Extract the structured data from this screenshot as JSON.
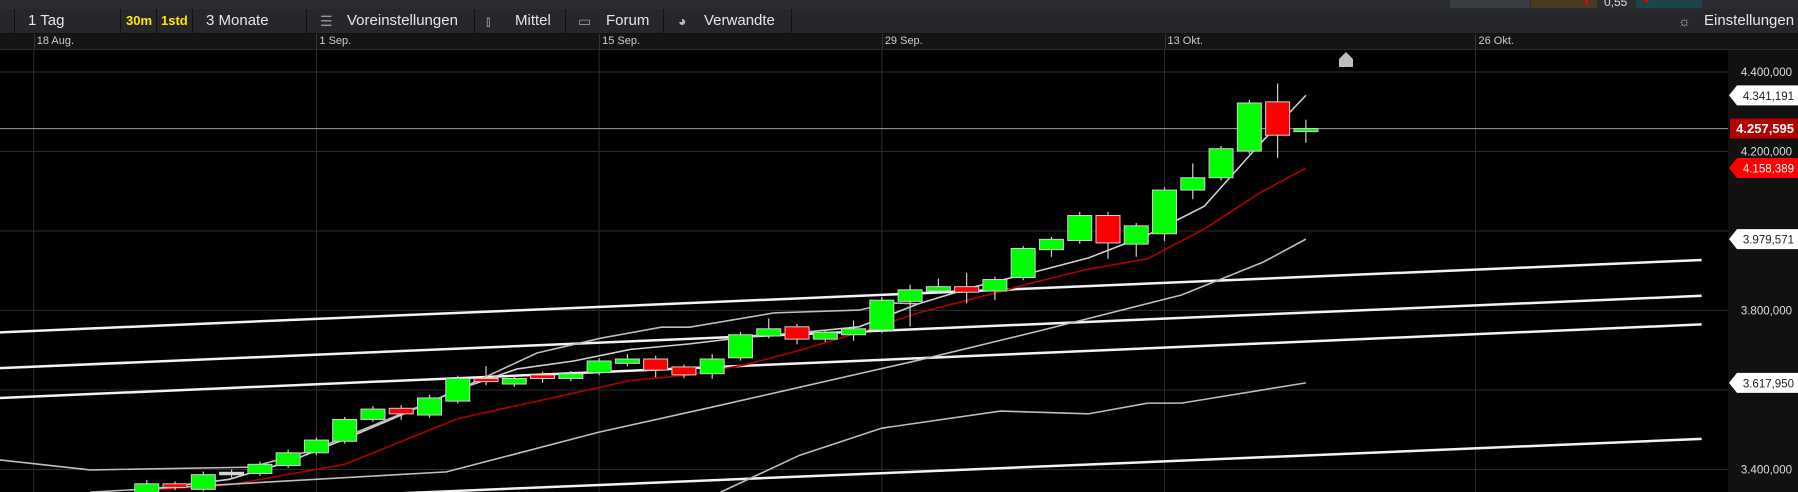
{
  "top_strip": {
    "value_text": "0,55"
  },
  "toolbar": {
    "period_label": "1 Tag",
    "interval_30m": "30m",
    "interval_1std": "1std",
    "range_label": "3 Monate",
    "presets_label": "Voreinstellungen",
    "presets_icon": "sliders-icon",
    "indicators_label": "Mittel",
    "indicators_icon": "candlestick-icon",
    "forum_label": "Forum",
    "forum_icon": "speech-bubble-icon",
    "related_label": "Verwandte",
    "related_icon": "circle-arrow-icon",
    "settings_label": "Einstellungen",
    "settings_icon": "gear-icon"
  },
  "chart_data": {
    "type": "candlestick",
    "colors": {
      "up": "#00ff00",
      "down": "#ff0000",
      "grid": "#2b2b2b",
      "background": "#000000"
    },
    "x_ticks": [
      {
        "label": "18 Aug.",
        "index": -3
      },
      {
        "label": "1 Sep.",
        "index": 7
      },
      {
        "label": "15 Sep.",
        "index": 17
      },
      {
        "label": "29 Sep.",
        "index": 27
      },
      {
        "label": "13 Okt.",
        "index": 37
      },
      {
        "label": "26 Okt.",
        "index": 48
      }
    ],
    "y_range": [
      3340000,
      4450000
    ],
    "y_ticks": [
      {
        "value": 4400000,
        "label": "4.400,000"
      },
      {
        "value": 4200000,
        "label": "4.200,000"
      },
      {
        "value": 4000000,
        "label": ""
      },
      {
        "value": 3800000,
        "label": "3.800,000"
      },
      {
        "value": 3600000,
        "label": ""
      },
      {
        "value": 3400000,
        "label": "3.400,000"
      }
    ],
    "candles": [
      [
        3341000,
        3374000,
        3330000,
        3364000
      ],
      [
        3364000,
        3370000,
        3348000,
        3355000
      ],
      [
        3350000,
        3395000,
        3345000,
        3387000
      ],
      [
        3391000,
        3400000,
        3380000,
        3393000
      ],
      [
        3390000,
        3420000,
        3384000,
        3413000
      ],
      [
        3410000,
        3450000,
        3404000,
        3442000
      ],
      [
        3442000,
        3480000,
        3436000,
        3474000
      ],
      [
        3471000,
        3532000,
        3465000,
        3526000
      ],
      [
        3526000,
        3560000,
        3520000,
        3552000
      ],
      [
        3554000,
        3562000,
        3525000,
        3540000
      ],
      [
        3537000,
        3588000,
        3530000,
        3580000
      ],
      [
        3572000,
        3636000,
        3566000,
        3629000
      ],
      [
        3629000,
        3660000,
        3612000,
        3621000
      ],
      [
        3615000,
        3636000,
        3608000,
        3629000
      ],
      [
        3638000,
        3646000,
        3618000,
        3629000
      ],
      [
        3629000,
        3648000,
        3622000,
        3641000
      ],
      [
        3644000,
        3680000,
        3637000,
        3673000
      ],
      [
        3667000,
        3690000,
        3660000,
        3678000
      ],
      [
        3678000,
        3686000,
        3632000,
        3650000
      ],
      [
        3658000,
        3664000,
        3630000,
        3638000
      ],
      [
        3641000,
        3690000,
        3628000,
        3678000
      ],
      [
        3681000,
        3746000,
        3674000,
        3739000
      ],
      [
        3736000,
        3780000,
        3730000,
        3754000
      ],
      [
        3759000,
        3766000,
        3715000,
        3728000
      ],
      [
        3728000,
        3752000,
        3721000,
        3745000
      ],
      [
        3739000,
        3775000,
        3724000,
        3754000
      ],
      [
        3751000,
        3834000,
        3744000,
        3826000
      ],
      [
        3823000,
        3865000,
        3760000,
        3852000
      ],
      [
        3849000,
        3880000,
        3842000,
        3860000
      ],
      [
        3860000,
        3895000,
        3818000,
        3846000
      ],
      [
        3849000,
        3885000,
        3826000,
        3878000
      ],
      [
        3883000,
        3962000,
        3876000,
        3956000
      ],
      [
        3953000,
        3985000,
        3935000,
        3979000
      ],
      [
        3976000,
        4048000,
        3968000,
        4039000
      ],
      [
        4039000,
        4048000,
        3930000,
        3970000
      ],
      [
        3967000,
        4020000,
        3935000,
        4013000
      ],
      [
        3993000,
        4110000,
        3975000,
        4103000
      ],
      [
        4103000,
        4170000,
        4080000,
        4134000
      ],
      [
        4134000,
        4214000,
        4127000,
        4207000
      ],
      [
        4201000,
        4330000,
        4194000,
        4322000
      ],
      [
        4325000,
        4371000,
        4184000,
        4241000
      ],
      [
        4250000,
        4280000,
        4222000,
        4257595
      ]
    ],
    "candle_fields": [
      "open",
      "high",
      "low",
      "close"
    ],
    "indicator_lines": [
      {
        "color": "#d0d0d0",
        "points": [
          [
            1,
            3350000
          ],
          [
            3.9,
            3375000
          ],
          [
            6,
            3419000
          ],
          [
            8,
            3476000
          ],
          [
            10,
            3537000
          ],
          [
            12,
            3601000
          ],
          [
            14.1,
            3653000
          ],
          [
            16.1,
            3673000
          ],
          [
            18.1,
            3702000
          ],
          [
            20.2,
            3716000
          ],
          [
            22.2,
            3733000
          ],
          [
            24.2,
            3745000
          ],
          [
            26.2,
            3759000
          ],
          [
            28.3,
            3817000
          ],
          [
            30.3,
            3860000
          ],
          [
            32.3,
            3895000
          ],
          [
            34.3,
            3932000
          ],
          [
            36.4,
            3990000
          ],
          [
            38.4,
            4062000
          ],
          [
            40.4,
            4221000
          ],
          [
            42,
            4341191
          ]
        ]
      },
      {
        "color": "#bdbdbd",
        "points": [
          [
            -4.2,
            3424000
          ],
          [
            -1,
            3399000
          ],
          [
            4.7,
            3406000
          ],
          [
            6.9,
            3449000
          ],
          [
            11.6,
            3587000
          ],
          [
            14.8,
            3693000
          ],
          [
            17.1,
            3731000
          ],
          [
            19.2,
            3758000
          ],
          [
            20.2,
            3758000
          ],
          [
            23.2,
            3794000
          ],
          [
            26.2,
            3801000
          ],
          [
            27.3,
            3819000
          ],
          [
            28.3,
            3817000
          ]
        ]
      },
      {
        "color": "#b00000",
        "points": [
          [
            1,
            3347000
          ],
          [
            3.9,
            3361000
          ],
          [
            8,
            3413000
          ],
          [
            12,
            3528000
          ],
          [
            16.1,
            3592000
          ],
          [
            18.1,
            3624000
          ],
          [
            20.2,
            3638000
          ],
          [
            22.2,
            3664000
          ],
          [
            24.2,
            3702000
          ],
          [
            26.2,
            3745000
          ],
          [
            28.3,
            3794000
          ],
          [
            30.3,
            3831000
          ],
          [
            32.3,
            3869000
          ],
          [
            34.3,
            3904000
          ],
          [
            36.4,
            3930000
          ],
          [
            38.4,
            4005000
          ],
          [
            40.4,
            4097000
          ],
          [
            42,
            4158389
          ]
        ]
      },
      {
        "color": "#bdbdbd",
        "points": [
          [
            -1,
            3343000
          ],
          [
            11.6,
            3394000
          ],
          [
            17,
            3494000
          ],
          [
            21,
            3557000
          ],
          [
            28.3,
            3675000
          ],
          [
            32.7,
            3751000
          ],
          [
            37.6,
            3839000
          ],
          [
            40.5,
            3922000
          ],
          [
            42,
            3979571
          ]
        ]
      },
      {
        "color": "#bdbdbd",
        "points": [
          [
            21.3,
            3343000
          ],
          [
            24.1,
            3436000
          ],
          [
            27,
            3504000
          ],
          [
            31.2,
            3547000
          ],
          [
            34.3,
            3540000
          ],
          [
            36.4,
            3567000
          ],
          [
            37.6,
            3567000
          ],
          [
            42,
            3617950
          ]
        ]
      }
    ],
    "trend_lines": [
      {
        "start": [
          -4.2,
          3745000
        ],
        "end": [
          56,
          3927000
        ]
      },
      {
        "start": [
          -4.2,
          3655000
        ],
        "end": [
          56,
          3837000
        ]
      },
      {
        "start": [
          -4.2,
          3580000
        ],
        "end": [
          56,
          3765000
        ]
      },
      {
        "start": [
          -4.2,
          3298000
        ],
        "end": [
          56,
          3477000
        ]
      }
    ],
    "current_price_line": 4257595,
    "price_badges": [
      {
        "label": "4.341,191",
        "value": 4341191,
        "style": "white"
      },
      {
        "label": "4.257,595",
        "value": 4257595,
        "style": "current"
      },
      {
        "label": "4.158,389",
        "value": 4158389,
        "style": "red"
      },
      {
        "label": "3.979,571",
        "value": 3979571,
        "style": "white"
      },
      {
        "label": "3.617,950",
        "value": 3617950,
        "style": "white"
      }
    ]
  }
}
